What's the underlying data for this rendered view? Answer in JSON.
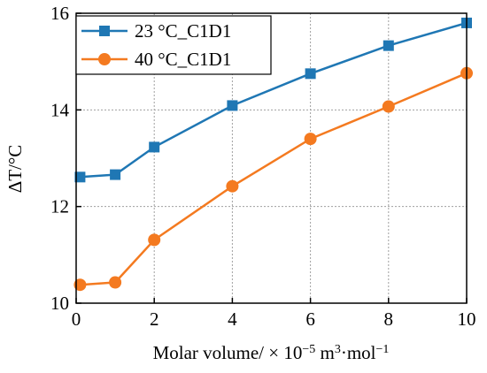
{
  "chart_data": {
    "type": "line",
    "xlabel_prefix": "Molar volume/ × 10",
    "xlabel_exp1": "−5",
    "xlabel_mid": " m",
    "xlabel_exp2": "3",
    "xlabel_mid2": "·mol",
    "xlabel_exp3": "−1",
    "ylabel": "ΔT/°C",
    "xlim": [
      0,
      10
    ],
    "ylim": [
      10,
      16
    ],
    "xticks": [
      "0",
      "2",
      "4",
      "6",
      "8",
      "10"
    ],
    "yticks": [
      "10",
      "12",
      "14",
      "16"
    ],
    "grid": true,
    "legend_position": "top-left",
    "x": [
      0.1,
      1,
      2,
      4,
      6,
      8,
      10
    ],
    "series": [
      {
        "name": "23 °C_C1D1",
        "color": "#1f77b4",
        "marker": "square",
        "values": [
          12.61,
          12.66,
          13.23,
          14.09,
          14.75,
          15.33,
          15.8
        ]
      },
      {
        "name": "40 °C_C1D1",
        "color": "#f47a20",
        "marker": "circle",
        "values": [
          10.38,
          10.43,
          11.31,
          12.42,
          13.4,
          14.07,
          14.76
        ]
      }
    ]
  }
}
